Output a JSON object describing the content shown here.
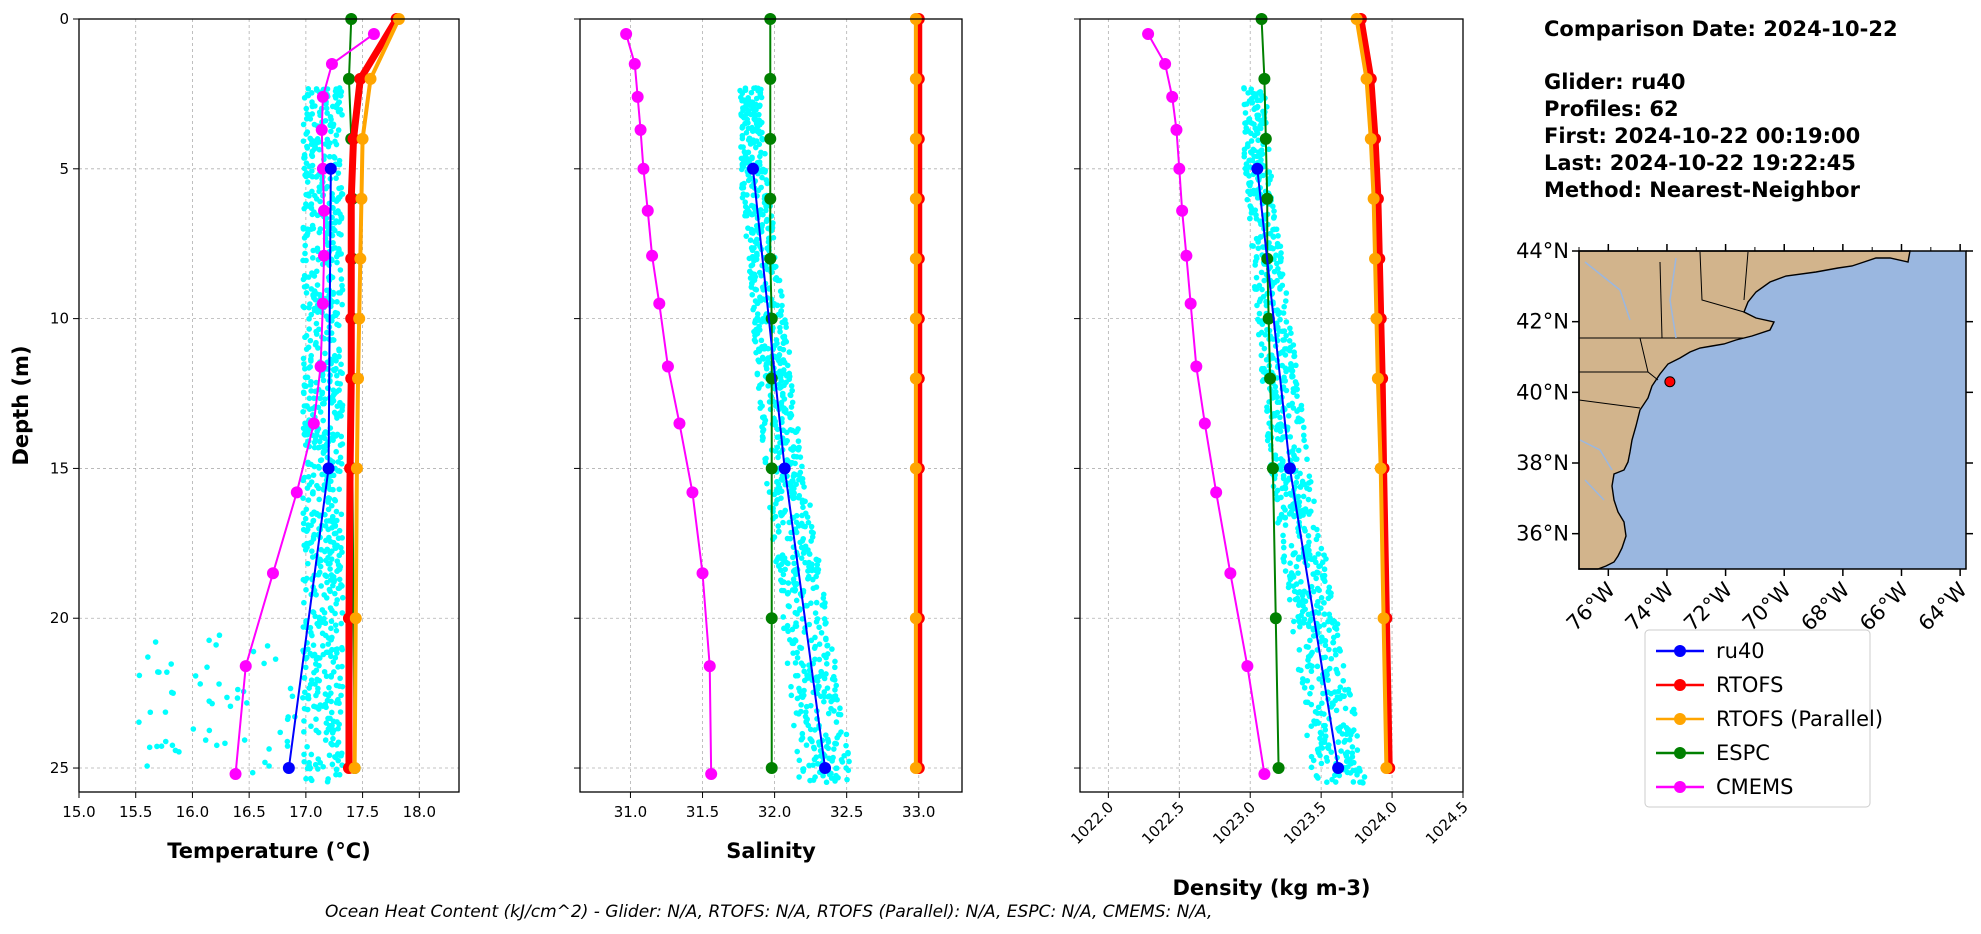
{
  "colors": {
    "ru40": "#0000ff",
    "RTOFS": "#ff0000",
    "RTOFS (Parallel)": "#ffa500",
    "ESPC": "#008000",
    "CMEMS": "#ff00ff",
    "glider_scatter": "#00ffff",
    "ocean": "#9ab7e0",
    "land": "#d2b48c"
  },
  "info": {
    "comparison_date": "Comparison Date: 2024-10-22",
    "glider": "Glider: ru40",
    "profiles": "Profiles: 62",
    "first": "First: 2024-10-22 00:19:00",
    "last": "Last: 2024-10-22 19:22:45",
    "method": "Method: Nearest-Neighbor"
  },
  "footer": "Ocean Heat Content (kJ/cm^2) - Glider: N/A,  RTOFS: N/A,  RTOFS (Parallel): N/A,  ESPC: N/A,  CMEMS: N/A,",
  "legend": [
    "ru40",
    "RTOFS",
    "RTOFS (Parallel)",
    "ESPC",
    "CMEMS"
  ],
  "map": {
    "lat_ticks": [
      "44°N",
      "42°N",
      "40°N",
      "38°N",
      "36°N"
    ],
    "lon_ticks": [
      "76°W",
      "74°W",
      "72°W",
      "70°W",
      "68°W",
      "66°W",
      "64°W"
    ],
    "lon_range": [
      -77,
      -63.8
    ],
    "lat_range": [
      35,
      44
    ],
    "glider_location": [
      -73.9,
      40.3
    ]
  },
  "chart_data": [
    {
      "type": "line",
      "xlabel": "Temperature (°C)",
      "ylabel": "Depth (m)",
      "xlim": [
        15.0,
        18.35
      ],
      "ylim": [
        25.8,
        0
      ],
      "xticks": [
        "15.0",
        "15.5",
        "16.0",
        "16.5",
        "17.0",
        "17.5",
        "18.0"
      ],
      "yticks": [
        "0",
        "5",
        "10",
        "15",
        "20",
        "25"
      ],
      "grid": true,
      "series": [
        {
          "name": "ru40",
          "x": [
            17.22,
            17.2,
            16.85
          ],
          "y": [
            5,
            15,
            25
          ]
        },
        {
          "name": "RTOFS",
          "x": [
            17.8,
            17.48,
            17.42,
            17.4,
            17.4,
            17.4,
            17.4,
            17.39,
            17.38,
            17.38
          ],
          "y": [
            0,
            2,
            4,
            6,
            8,
            10,
            12,
            15,
            20,
            25
          ]
        },
        {
          "name": "RTOFS (Parallel)",
          "x": [
            17.82,
            17.57,
            17.5,
            17.49,
            17.48,
            17.47,
            17.46,
            17.45,
            17.44,
            17.43
          ],
          "y": [
            0,
            2,
            4,
            6,
            8,
            10,
            12,
            15,
            20,
            25
          ]
        },
        {
          "name": "ESPC",
          "x": [
            17.4,
            17.38,
            17.4,
            17.41,
            17.41,
            17.41,
            17.41,
            17.41,
            17.42,
            17.43
          ],
          "y": [
            0,
            2,
            4,
            6,
            8,
            10,
            12,
            15,
            20,
            25
          ]
        },
        {
          "name": "CMEMS",
          "x": [
            17.6,
            17.23,
            17.15,
            17.14,
            17.15,
            17.16,
            17.16,
            17.15,
            17.13,
            17.07,
            16.92,
            16.71,
            16.47,
            16.38
          ],
          "y": [
            0.5,
            1.5,
            2.6,
            3.7,
            5.0,
            6.4,
            7.9,
            9.5,
            11.6,
            13.5,
            15.8,
            18.5,
            21.6,
            25.2
          ]
        }
      ]
    },
    {
      "type": "line",
      "xlabel": "Salinity",
      "xlim": [
        30.65,
        33.3
      ],
      "ylim": [
        25.8,
        0
      ],
      "xticks": [
        "31.0",
        "31.5",
        "32.0",
        "32.5",
        "33.0"
      ],
      "grid": true,
      "series": [
        {
          "name": "ru40",
          "x": [
            31.85,
            32.07,
            32.35
          ],
          "y": [
            5,
            15,
            25
          ]
        },
        {
          "name": "RTOFS",
          "x": [
            33.0,
            33.0,
            33.0,
            33.0,
            33.0,
            33.0,
            33.0,
            33.0,
            33.0,
            33.0
          ],
          "y": [
            0,
            2,
            4,
            6,
            8,
            10,
            12,
            15,
            20,
            25
          ]
        },
        {
          "name": "RTOFS (Parallel)",
          "x": [
            32.98,
            32.98,
            32.98,
            32.98,
            32.98,
            32.98,
            32.98,
            32.98,
            32.98,
            32.98
          ],
          "y": [
            0,
            2,
            4,
            6,
            8,
            10,
            12,
            15,
            20,
            25
          ]
        },
        {
          "name": "ESPC",
          "x": [
            31.97,
            31.97,
            31.97,
            31.97,
            31.97,
            31.98,
            31.98,
            31.98,
            31.98,
            31.98
          ],
          "y": [
            0,
            2,
            4,
            6,
            8,
            10,
            12,
            15,
            20,
            25
          ]
        },
        {
          "name": "CMEMS",
          "x": [
            30.97,
            31.03,
            31.05,
            31.07,
            31.09,
            31.12,
            31.15,
            31.2,
            31.26,
            31.34,
            31.43,
            31.5,
            31.55,
            31.56
          ],
          "y": [
            0.5,
            1.5,
            2.6,
            3.7,
            5.0,
            6.4,
            7.9,
            9.5,
            11.6,
            13.5,
            15.8,
            18.5,
            21.6,
            25.2
          ]
        }
      ]
    },
    {
      "type": "line",
      "xlabel": "Density (kg m-3)",
      "xlim": [
        1021.8,
        1024.5
      ],
      "ylim": [
        25.8,
        0
      ],
      "xticks": [
        "1022.0",
        "1022.5",
        "1023.0",
        "1023.5",
        "1024.0",
        "1024.5"
      ],
      "grid": true,
      "series": [
        {
          "name": "ru40",
          "x": [
            1023.05,
            1023.28,
            1023.62
          ],
          "y": [
            5,
            15,
            25
          ]
        },
        {
          "name": "RTOFS",
          "x": [
            1023.78,
            1023.85,
            1023.88,
            1023.9,
            1023.91,
            1023.92,
            1023.93,
            1023.94,
            1023.96,
            1023.98
          ],
          "y": [
            0,
            2,
            4,
            6,
            8,
            10,
            12,
            15,
            20,
            25
          ]
        },
        {
          "name": "RTOFS (Parallel)",
          "x": [
            1023.75,
            1023.82,
            1023.85,
            1023.87,
            1023.88,
            1023.89,
            1023.9,
            1023.92,
            1023.94,
            1023.96
          ],
          "y": [
            0,
            2,
            4,
            6,
            8,
            10,
            12,
            15,
            20,
            25
          ]
        },
        {
          "name": "ESPC",
          "x": [
            1023.08,
            1023.1,
            1023.11,
            1023.12,
            1023.12,
            1023.13,
            1023.14,
            1023.16,
            1023.18,
            1023.2
          ],
          "y": [
            0,
            2,
            4,
            6,
            8,
            10,
            12,
            15,
            20,
            25
          ]
        },
        {
          "name": "CMEMS",
          "x": [
            1022.28,
            1022.4,
            1022.45,
            1022.48,
            1022.5,
            1022.52,
            1022.55,
            1022.58,
            1022.62,
            1022.68,
            1022.76,
            1022.86,
            1022.98,
            1023.1
          ],
          "y": [
            0.5,
            1.5,
            2.6,
            3.7,
            5.0,
            6.4,
            7.9,
            9.5,
            11.6,
            13.5,
            15.8,
            18.5,
            21.6,
            25.2
          ]
        }
      ]
    }
  ]
}
